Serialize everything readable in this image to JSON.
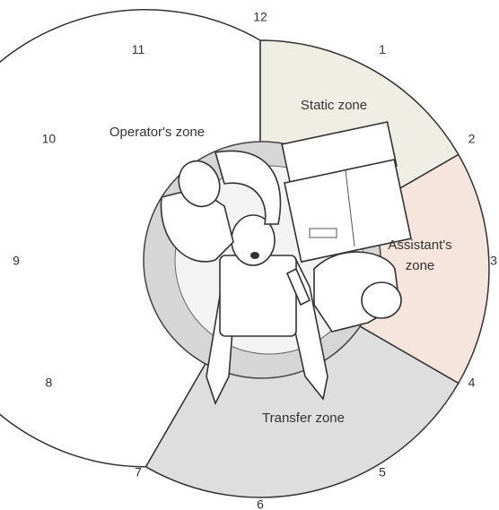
{
  "clock": [
    "12",
    "1",
    "2",
    "3",
    "4",
    "5",
    "6",
    "7",
    "8",
    "9",
    "10",
    "11"
  ],
  "zones": [
    {
      "lines": [
        "Operator's zone"
      ]
    },
    {
      "lines": [
        "Static zone"
      ]
    },
    {
      "lines": [
        "Assistant's",
        "zone"
      ]
    },
    {
      "lines": [
        "Transfer zone"
      ]
    }
  ]
}
